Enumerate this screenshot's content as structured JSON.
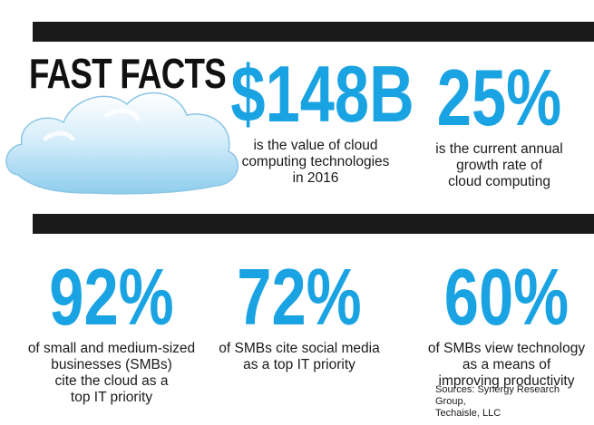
{
  "header": {
    "title": "FAST FACTS",
    "cloud_icon": "cloud-icon"
  },
  "colors": {
    "accent": "#1aa3e2",
    "bars": "#1a1a1a",
    "text": "#1a1a1a"
  },
  "stats": [
    {
      "value": "$148B",
      "desc": [
        "is the value of cloud",
        "computing technologies",
        "in 2016"
      ]
    },
    {
      "value": "25%",
      "desc": [
        "is the current annual",
        "growth rate of",
        "cloud computing"
      ]
    },
    {
      "value": "92%",
      "desc": [
        "of small and medium-sized",
        "businesses (SMBs)",
        "cite the cloud as a",
        "top IT priority"
      ]
    },
    {
      "value": "72%",
      "desc": [
        "of SMBs cite social media",
        "as a top IT priority"
      ]
    },
    {
      "value": "60%",
      "desc": [
        "of SMBs view technology",
        "as a means of",
        "improving productivity"
      ]
    }
  ],
  "sources": [
    "Sources: Synergy Research Group,",
    "Techaisle, LLC"
  ]
}
